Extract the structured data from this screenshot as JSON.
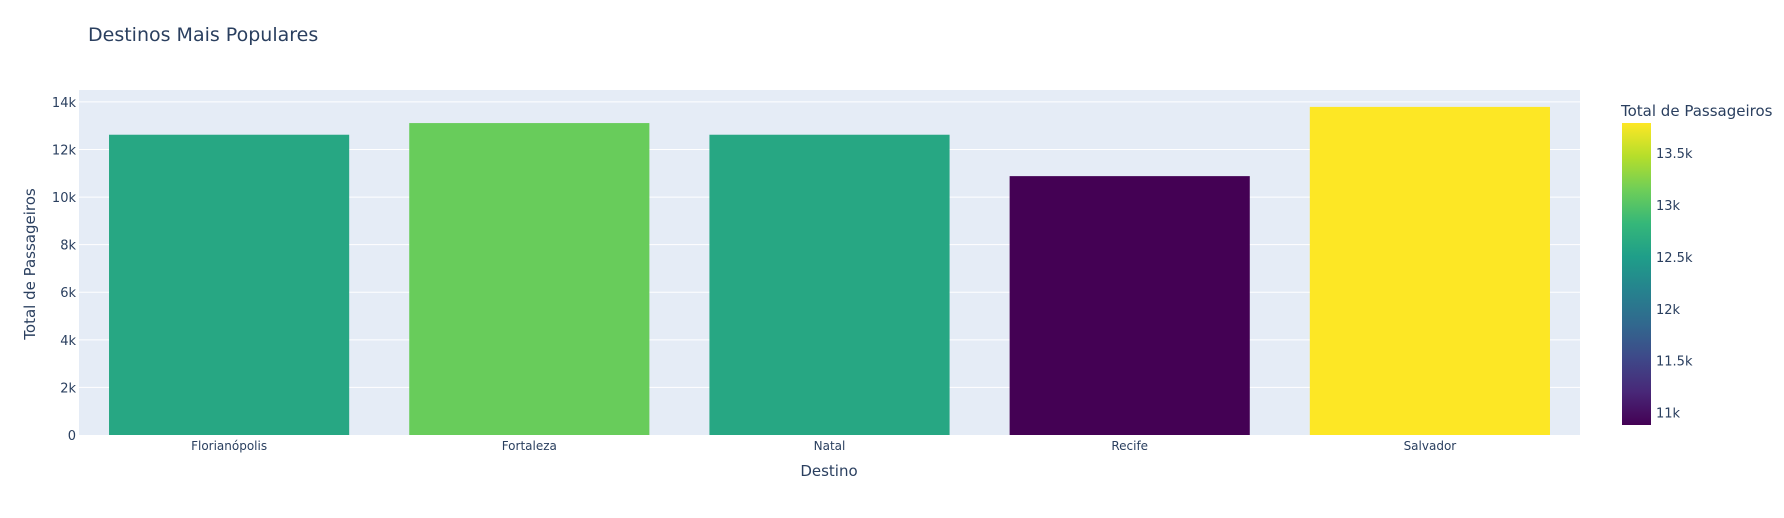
{
  "chart_data": {
    "type": "bar",
    "title": "Destinos Mais Populares",
    "xlabel": "Destino",
    "ylabel": "Total de Passageiros",
    "categories": [
      "Florianópolis",
      "Fortaleza",
      "Natal",
      "Recife",
      "Salvador"
    ],
    "values": [
      12620,
      13110,
      12620,
      10880,
      13790
    ],
    "ylim": [
      0,
      14500
    ],
    "yticks": [
      0,
      2000,
      4000,
      6000,
      8000,
      10000,
      12000,
      14000
    ],
    "ytick_labels": [
      "0",
      "2k",
      "4k",
      "6k",
      "8k",
      "10k",
      "12k",
      "14k"
    ],
    "grid": true,
    "colorbar": {
      "title": "Total de Passageiros",
      "colorscale": "Viridis",
      "range": [
        10880,
        13790
      ],
      "ticks": [
        11000,
        11500,
        12000,
        12500,
        13000,
        13500
      ],
      "tick_labels": [
        "11k",
        "11.5k",
        "12k",
        "12.5k",
        "13k",
        "13.5k"
      ],
      "placement": "right"
    },
    "colors": {
      "plot_background": "#e5ecf6",
      "grid": "#ffffff",
      "text": "#2a3f5f"
    }
  }
}
